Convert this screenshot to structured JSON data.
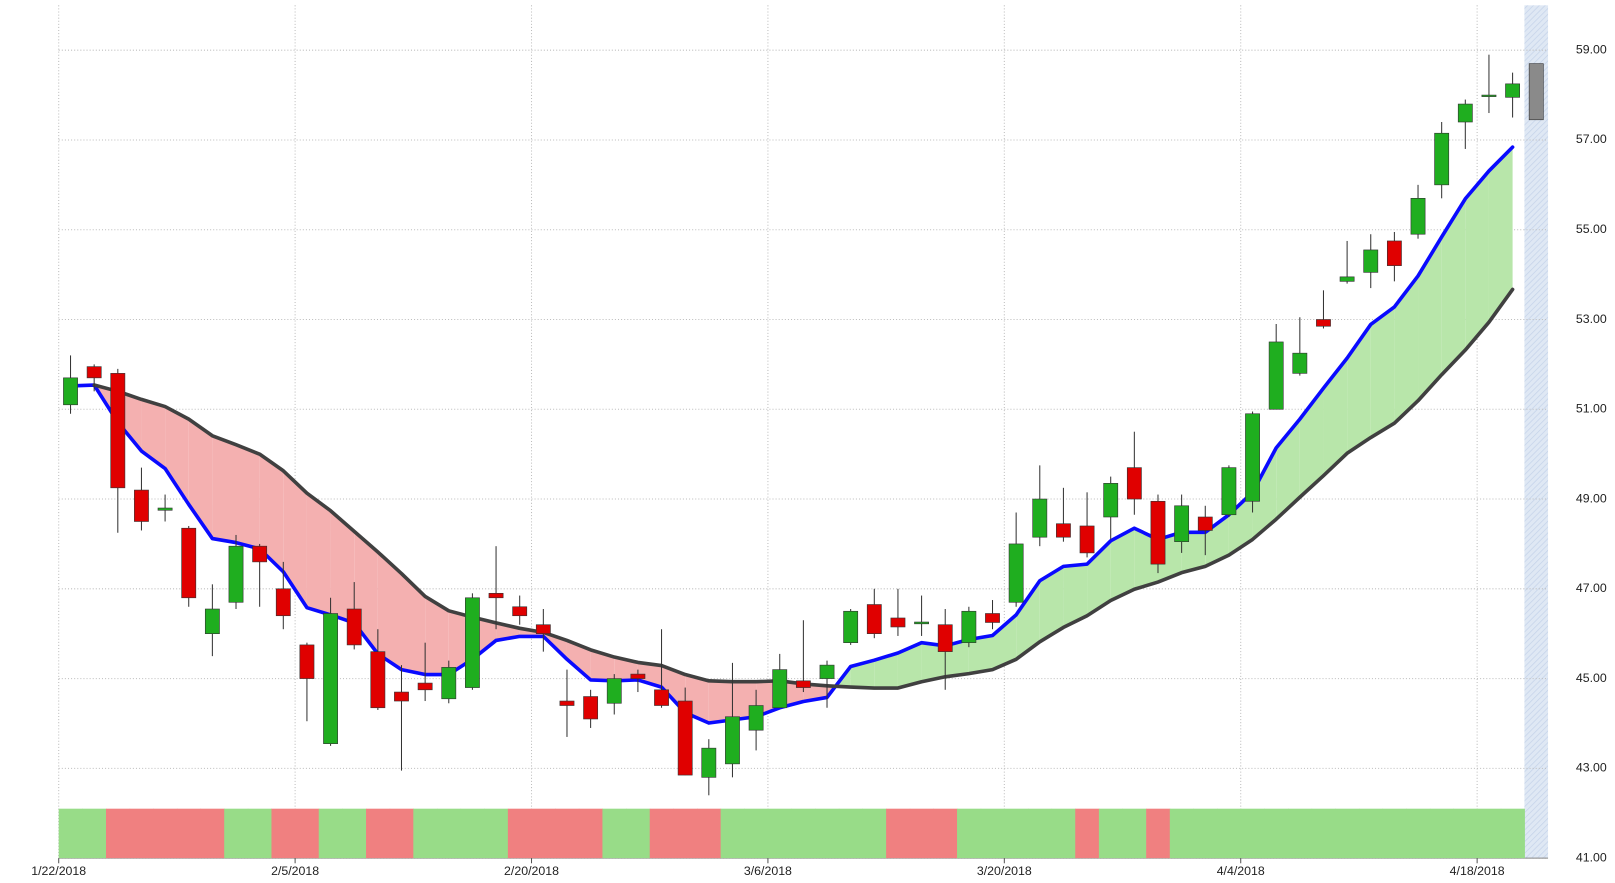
{
  "chart_data": {
    "type": "candlestick",
    "categories": [
      "1/22/2018",
      null,
      null,
      null,
      null,
      null,
      null,
      null,
      null,
      null,
      "2/5/2018",
      null,
      null,
      null,
      null,
      null,
      null,
      null,
      null,
      null,
      "2/20/2018",
      null,
      null,
      null,
      null,
      null,
      null,
      null,
      null,
      null,
      "3/6/2018",
      null,
      null,
      null,
      null,
      null,
      null,
      null,
      null,
      null,
      "3/20/2018",
      null,
      null,
      null,
      null,
      null,
      null,
      null,
      null,
      null,
      "4/4/2018",
      null,
      null,
      null,
      null,
      null,
      null,
      null,
      null,
      null,
      "4/18/2018",
      null,
      null
    ],
    "open": [
      51.1,
      51.95,
      51.8,
      49.2,
      48.75,
      48.35,
      46.0,
      46.7,
      47.95,
      47.0,
      45.75,
      43.55,
      46.55,
      45.6,
      44.7,
      44.9,
      44.55,
      44.8,
      46.9,
      46.6,
      46.2,
      44.5,
      44.6,
      44.45,
      45.1,
      44.75,
      44.5,
      42.8,
      43.1,
      43.85,
      44.35,
      44.95,
      45.0,
      45.8,
      46.65,
      46.35,
      46.22,
      46.2,
      45.8,
      46.45,
      46.7,
      48.15,
      48.45,
      48.4,
      48.6,
      49.7,
      48.95,
      48.05,
      48.6,
      48.65,
      48.95,
      51.0,
      51.8,
      53.0,
      53.85,
      54.05,
      54.75,
      54.9,
      56.0,
      57.4,
      57.98,
      57.95,
      57.45
    ],
    "high": [
      52.2,
      52.0,
      51.9,
      49.7,
      49.1,
      48.4,
      47.1,
      48.2,
      48.0,
      47.6,
      45.8,
      46.8,
      47.15,
      46.1,
      45.3,
      45.8,
      45.4,
      46.9,
      47.95,
      46.85,
      46.55,
      45.2,
      44.75,
      45.1,
      45.2,
      46.1,
      44.8,
      43.65,
      45.35,
      44.75,
      45.55,
      46.3,
      45.4,
      46.55,
      47.0,
      47.0,
      46.85,
      46.55,
      46.6,
      46.75,
      48.7,
      49.75,
      49.25,
      49.15,
      49.5,
      50.5,
      49.1,
      49.1,
      48.85,
      49.75,
      50.95,
      52.9,
      53.05,
      53.65,
      54.75,
      54.9,
      54.95,
      56.0,
      57.4,
      57.9,
      58.9,
      58.5,
      58.7
    ],
    "low": [
      50.9,
      51.4,
      48.25,
      48.3,
      48.5,
      46.6,
      45.5,
      46.55,
      46.6,
      46.1,
      44.05,
      43.5,
      45.65,
      44.3,
      42.95,
      44.5,
      44.45,
      44.75,
      46.1,
      46.2,
      45.6,
      43.7,
      43.9,
      44.2,
      44.7,
      44.35,
      42.85,
      42.4,
      42.8,
      43.4,
      44.35,
      44.7,
      44.35,
      45.75,
      45.9,
      45.95,
      45.95,
      44.75,
      45.7,
      46.1,
      46.6,
      47.95,
      48.05,
      47.7,
      48.1,
      48.65,
      47.35,
      47.8,
      47.75,
      48.6,
      48.7,
      51.0,
      51.75,
      52.8,
      53.8,
      53.7,
      53.85,
      54.8,
      55.7,
      56.8,
      57.6,
      57.5,
      57.45
    ],
    "close": [
      51.7,
      51.7,
      49.25,
      48.5,
      48.8,
      46.8,
      46.55,
      47.95,
      47.6,
      46.4,
      45.0,
      46.45,
      45.75,
      44.35,
      44.5,
      44.75,
      45.25,
      46.8,
      46.8,
      46.4,
      46.0,
      44.4,
      44.1,
      45.0,
      45.0,
      44.4,
      42.85,
      43.45,
      44.15,
      44.4,
      45.2,
      44.8,
      45.3,
      46.5,
      46.0,
      46.15,
      46.26,
      45.6,
      46.5,
      46.25,
      48.0,
      49.0,
      48.15,
      47.8,
      49.35,
      49.0,
      47.55,
      48.85,
      48.3,
      49.7,
      50.9,
      52.5,
      52.25,
      52.85,
      53.95,
      54.55,
      54.2,
      55.7,
      57.15,
      57.8,
      58.0,
      58.25,
      58.7
    ],
    "candle_colors": {
      "up": "#1fae1f",
      "down": "#e00000",
      "last": "#8a8a8a"
    },
    "lines": [
      {
        "color": "#0a0aff",
        "values": [
          51.52,
          51.54,
          50.71,
          50.07,
          49.68,
          48.88,
          48.12,
          48.03,
          47.89,
          47.38,
          46.58,
          46.42,
          46.24,
          45.55,
          45.2,
          45.09,
          45.09,
          45.43,
          45.85,
          45.94,
          45.94,
          45.43,
          44.97,
          44.95,
          44.97,
          44.81,
          44.24,
          44.01,
          44.08,
          44.15,
          44.35,
          44.49,
          44.58,
          45.27,
          45.41,
          45.57,
          45.8,
          45.73,
          45.87,
          45.96,
          46.42,
          47.18,
          47.5,
          47.55,
          48.07,
          48.35,
          48.1,
          48.26,
          48.26,
          48.65,
          49.15,
          50.14,
          50.78,
          51.47,
          52.14,
          52.89,
          53.28,
          53.97,
          54.84,
          55.69,
          56.31,
          56.84,
          null
        ]
      },
      {
        "color": "#404040",
        "values": [
          null,
          51.54,
          51.4,
          51.22,
          51.06,
          50.78,
          50.41,
          50.21,
          50.0,
          49.63,
          49.13,
          48.74,
          48.28,
          47.82,
          47.34,
          46.83,
          46.51,
          46.37,
          46.24,
          46.12,
          46.03,
          45.85,
          45.64,
          45.48,
          45.36,
          45.29,
          45.09,
          44.95,
          44.93,
          44.93,
          44.95,
          44.88,
          44.84,
          44.81,
          44.79,
          44.79,
          44.93,
          45.04,
          45.11,
          45.2,
          45.43,
          45.82,
          46.14,
          46.4,
          46.74,
          46.99,
          47.15,
          47.36,
          47.5,
          47.75,
          48.1,
          48.55,
          49.04,
          49.52,
          50.02,
          50.37,
          50.69,
          51.19,
          51.77,
          52.32,
          52.94,
          53.67,
          null
        ]
      }
    ],
    "fill_colors": {
      "above": "#b8e6aa",
      "below": "#f4b0b0"
    },
    "signal_colors": [
      "#98dc88",
      "#98dc88",
      "#f08080",
      "#f08080",
      "#f08080",
      "#f08080",
      "#f08080",
      "#98dc88",
      "#98dc88",
      "#f08080",
      "#f08080",
      "#98dc88",
      "#98dc88",
      "#f08080",
      "#f08080",
      "#98dc88",
      "#98dc88",
      "#98dc88",
      "#98dc88",
      "#f08080",
      "#f08080",
      "#f08080",
      "#f08080",
      "#98dc88",
      "#98dc88",
      "#f08080",
      "#f08080",
      "#f08080",
      "#98dc88",
      "#98dc88",
      "#98dc88",
      "#98dc88",
      "#98dc88",
      "#98dc88",
      "#98dc88",
      "#f08080",
      "#f08080",
      "#f08080",
      "#98dc88",
      "#98dc88",
      "#98dc88",
      "#98dc88",
      "#98dc88",
      "#f08080",
      "#98dc88",
      "#98dc88",
      "#f08080",
      "#98dc88",
      "#98dc88",
      "#98dc88",
      "#98dc88",
      "#98dc88",
      "#98dc88",
      "#98dc88",
      "#98dc88",
      "#98dc88",
      "#98dc88",
      "#98dc88",
      "#98dc88",
      "#98dc88",
      "#98dc88",
      "#98dc88",
      null
    ],
    "ylim": [
      41,
      60
    ],
    "yticks": [
      {
        "value": 41,
        "label": "41.00"
      },
      {
        "value": 43,
        "label": "43.00"
      },
      {
        "value": 45,
        "label": "45.00"
      },
      {
        "value": 47,
        "label": "47.00"
      },
      {
        "value": 49,
        "label": "49.00"
      },
      {
        "value": 51,
        "label": "51.00"
      },
      {
        "value": 53,
        "label": "53.00"
      },
      {
        "value": 55,
        "label": "55.00"
      },
      {
        "value": 57,
        "label": "57.00"
      },
      {
        "value": 59,
        "label": "59.00"
      }
    ],
    "grid": true
  }
}
